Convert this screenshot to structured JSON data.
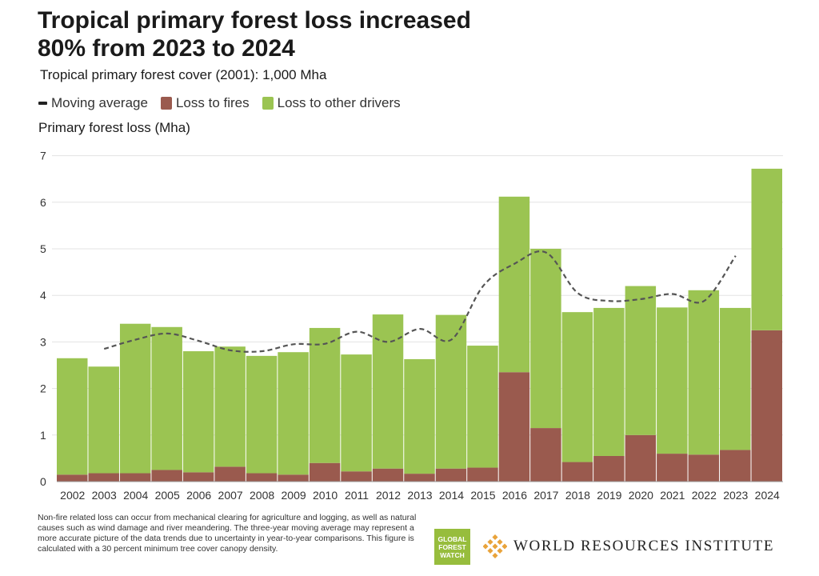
{
  "title": "Tropical primary forest loss increased 80% from 2023 to 2024",
  "subtitle": "Tropical primary forest cover (2001): 1,000 Mha",
  "legend": {
    "moving_average": "Moving average",
    "fires": "Loss to fires",
    "other": "Loss to other drivers"
  },
  "colors": {
    "fires": "#9a5a4e",
    "other": "#9bc452",
    "moving_average": "#555555",
    "grid": "#e3e3e3"
  },
  "chart_data": {
    "type": "bar",
    "stacked": true,
    "ylabel": "Primary forest loss (Mha)",
    "ylim": [
      0,
      7
    ],
    "yticks": [
      "0",
      "1",
      "2",
      "3",
      "4",
      "5",
      "6",
      "7"
    ],
    "categories": [
      "2002",
      "2003",
      "2004",
      "2005",
      "2006",
      "2007",
      "2008",
      "2009",
      "2010",
      "2011",
      "2012",
      "2013",
      "2014",
      "2015",
      "2016",
      "2017",
      "2018",
      "2019",
      "2020",
      "2021",
      "2022",
      "2023",
      "2024"
    ],
    "series": [
      {
        "name": "Loss to fires",
        "values": [
          0.15,
          0.18,
          0.18,
          0.25,
          0.2,
          0.32,
          0.18,
          0.15,
          0.4,
          0.22,
          0.28,
          0.17,
          0.28,
          0.3,
          2.35,
          1.15,
          0.42,
          0.55,
          1.0,
          0.6,
          0.58,
          0.68,
          3.25
        ]
      },
      {
        "name": "Loss to other drivers",
        "values": [
          2.5,
          2.29,
          3.21,
          3.07,
          2.6,
          2.58,
          2.52,
          2.63,
          2.9,
          2.51,
          3.31,
          2.46,
          3.3,
          2.62,
          3.77,
          3.85,
          3.22,
          3.18,
          3.2,
          3.14,
          3.53,
          3.05,
          3.47
        ]
      },
      {
        "name": "Moving average",
        "type": "line",
        "style": "dashed",
        "x": [
          "2003",
          "2004",
          "2005",
          "2006",
          "2007",
          "2008",
          "2009",
          "2010",
          "2011",
          "2012",
          "2013",
          "2014",
          "2015",
          "2016",
          "2017",
          "2018",
          "2019",
          "2020",
          "2021",
          "2022",
          "2023"
        ],
        "values": [
          2.85,
          3.05,
          3.18,
          3.02,
          2.82,
          2.8,
          2.95,
          2.96,
          3.22,
          3.0,
          3.28,
          3.05,
          4.2,
          4.68,
          4.92,
          4.05,
          3.88,
          3.92,
          4.03,
          3.88,
          4.85
        ]
      }
    ]
  },
  "footnote": "Non-fire related loss can occur from mechanical clearing for agriculture and logging, as well as natural causes such as wind damage and river meandering. The three-year moving average may represent a more accurate picture of the data trends due to uncertainty in year-to-year comparisons. This figure is calculated with a 30 percent minimum tree cover canopy density.",
  "logos": {
    "gfw": [
      "GLOBAL",
      "FOREST",
      "WATCH"
    ],
    "wri": "WORLD RESOURCES INSTITUTE"
  }
}
